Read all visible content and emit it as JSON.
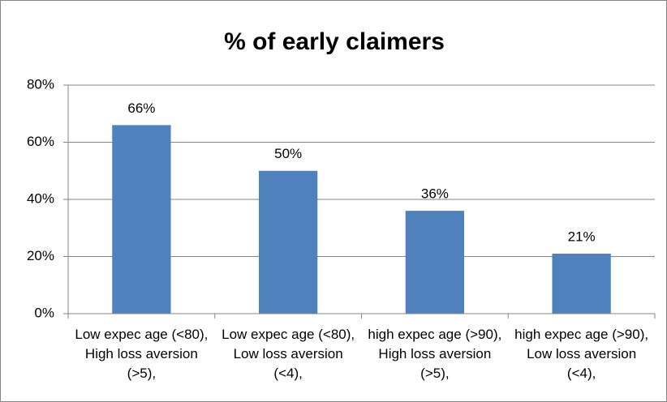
{
  "chart_data": {
    "type": "bar",
    "title": "% of early claimers",
    "categories": [
      "Low expec age (<80), High loss aversion (>5),",
      "Low expec age (<80), Low loss aversion (<4),",
      "high expec age (>90), High loss aversion (>5),",
      "high expec age (>90), Low loss aversion (<4),"
    ],
    "values": [
      66,
      50,
      36,
      21
    ],
    "value_labels": [
      "66%",
      "50%",
      "36%",
      "21%"
    ],
    "color": "#4f81bd",
    "ylim": [
      0,
      80
    ],
    "yticks": [
      {
        "value": 0,
        "label": "0%"
      },
      {
        "value": 20,
        "label": "20%"
      },
      {
        "value": 40,
        "label": "40%"
      },
      {
        "value": 60,
        "label": "60%"
      },
      {
        "value": 80,
        "label": "80%"
      }
    ],
    "grid": true
  }
}
